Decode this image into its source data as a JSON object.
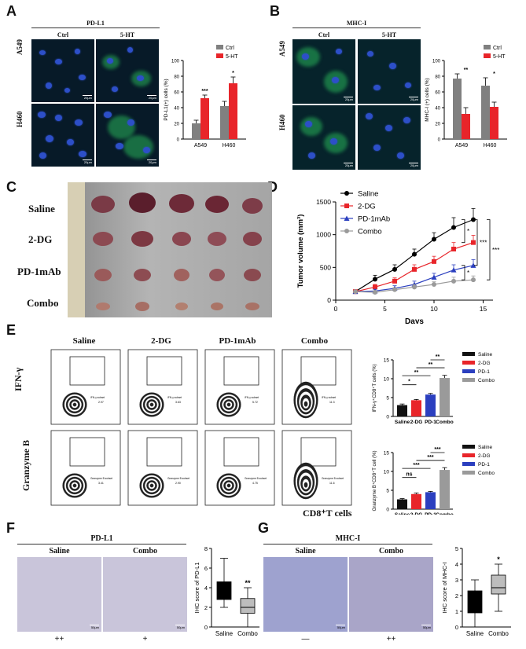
{
  "panels": {
    "A": "A",
    "B": "B",
    "C": "C",
    "D": "D",
    "E": "E",
    "F": "F",
    "G": "G"
  },
  "A": {
    "title": "PD-L1",
    "cols": [
      "Ctrl",
      "5-HT"
    ],
    "rows": [
      "A549",
      "H460"
    ],
    "scale": "20μm",
    "legend": [
      "Ctrl",
      "5-HT"
    ],
    "ylabel": "PD-L1(+) cells (%)",
    "yticks": [
      "0",
      "20",
      "40",
      "60",
      "80",
      "100"
    ],
    "sig": [
      "***",
      "*"
    ],
    "colors": {
      "ctrl": "#808080",
      "treat": "#e8252a"
    }
  },
  "B": {
    "title": "MHC-I",
    "cols": [
      "Ctrl",
      "5-HT"
    ],
    "rows": [
      "A549",
      "H460"
    ],
    "scale": "20μm",
    "legend": [
      "Ctrl",
      "5-HT"
    ],
    "ylabel": "MHC-I (+) cells (%)",
    "yticks": [
      "0",
      "20",
      "40",
      "60",
      "80",
      "100"
    ],
    "sig": [
      "**",
      "*"
    ]
  },
  "C": {
    "rows": [
      "Saline",
      "2-DG",
      "PD-1mAb",
      "Combo"
    ]
  },
  "D": {
    "xlabel": "Days",
    "ylabel": "Tumor volume (mm³)",
    "legend": [
      "Saline",
      "2-DG",
      "PD-1mAb",
      "Combo"
    ],
    "sig": [
      "*",
      "***",
      "***",
      "*"
    ]
  },
  "E": {
    "cols": [
      "Saline",
      "2-DG",
      "PD-1mAb",
      "Combo"
    ],
    "row1": "IFN-γ",
    "row2": "Granzyme B",
    "xlabel": "CD8⁺T cells",
    "gate1": "IFN-γ subset",
    "gate2": "Granzyme B subset",
    "vals1": [
      "2.97",
      "3.63",
      "5.72",
      "11.3"
    ],
    "vals2": [
      "3.41",
      "2.90",
      "4.75",
      "11.6"
    ],
    "legend": [
      "Saline",
      "2-DG",
      "PD-1",
      "Combo"
    ],
    "ylabel1": "IFN-γ⁺CD8⁺T cells (%)",
    "ylabel2": "Granzyme B⁺CD8⁺T cell (%)",
    "sig1": [
      "*",
      "**",
      "**",
      "**"
    ],
    "sig2": [
      "ns",
      "***",
      "***",
      "***"
    ],
    "xcats": [
      "Saline",
      "2-DG",
      "PD-1",
      "Combo"
    ]
  },
  "F": {
    "title": "PD-L1",
    "cols": [
      "Saline",
      "Combo"
    ],
    "scores": [
      "++",
      "+"
    ],
    "scale": "50μm",
    "ylabel": "IHC score of PD-L1",
    "sig": "**",
    "xcats": [
      "Saline",
      "Combo"
    ]
  },
  "G": {
    "title": "MHC-I",
    "cols": [
      "Saline",
      "Combo"
    ],
    "scores": [
      "—",
      "++"
    ],
    "scale": "50μm",
    "ylabel": "IHC score of MHC-I",
    "sig": "*",
    "xcats": [
      "Saline",
      "Combo"
    ]
  },
  "chart_data": [
    {
      "id": "A",
      "type": "bar",
      "categories": [
        "A549",
        "H460"
      ],
      "series": [
        {
          "name": "Ctrl",
          "values": [
            20,
            42
          ],
          "errors": [
            4,
            6
          ]
        },
        {
          "name": "5-HT",
          "values": [
            52,
            71
          ],
          "errors": [
            4,
            8
          ]
        }
      ],
      "ylabel": "PD-L1(+) cells (%)",
      "ylim": [
        0,
        100
      ]
    },
    {
      "id": "B",
      "type": "bar",
      "categories": [
        "A549",
        "H460"
      ],
      "series": [
        {
          "name": "Ctrl",
          "values": [
            77,
            68
          ],
          "errors": [
            6,
            10
          ]
        },
        {
          "name": "5-HT",
          "values": [
            32,
            41
          ],
          "errors": [
            8,
            6
          ]
        }
      ],
      "ylabel": "MHC-I (+) cells (%)",
      "ylim": [
        0,
        100
      ]
    },
    {
      "id": "D",
      "type": "line",
      "x": [
        2,
        4,
        6,
        8,
        10,
        12,
        14
      ],
      "series": [
        {
          "name": "Saline",
          "values": [
            130,
            320,
            470,
            700,
            930,
            1110,
            1230
          ],
          "errors": [
            20,
            60,
            70,
            80,
            100,
            150,
            170
          ]
        },
        {
          "name": "2-DG",
          "values": [
            130,
            200,
            290,
            470,
            590,
            780,
            880
          ],
          "errors": [
            20,
            40,
            50,
            70,
            80,
            100,
            110
          ]
        },
        {
          "name": "PD-1mAb",
          "values": [
            130,
            140,
            180,
            240,
            350,
            460,
            530
          ],
          "errors": [
            15,
            25,
            40,
            50,
            60,
            80,
            90
          ]
        },
        {
          "name": "Combo",
          "values": [
            130,
            120,
            160,
            200,
            240,
            290,
            310
          ],
          "errors": [
            15,
            20,
            30,
            40,
            40,
            60,
            60
          ]
        }
      ],
      "xlabel": "Days",
      "ylabel": "Tumor volume (mm³)",
      "xlim": [
        0,
        16
      ],
      "ylim": [
        0,
        1500
      ],
      "xticks": [
        0,
        5,
        10,
        15
      ],
      "yticks": [
        0,
        500,
        1000,
        1500
      ]
    },
    {
      "id": "E1",
      "type": "bar",
      "categories": [
        "Saline",
        "2-DG",
        "PD-1",
        "Combo"
      ],
      "values": [
        3.0,
        4.3,
        5.8,
        10.2
      ],
      "errors": [
        0.3,
        0.2,
        0.3,
        0.7
      ],
      "colors": [
        "#111111",
        "#e8252a",
        "#2b3fbf",
        "#9a9a9a"
      ],
      "ylabel": "IFN-γ⁺CD8⁺T cells (%)",
      "ylim": [
        0,
        15
      ],
      "yticks": [
        0,
        5,
        10,
        15
      ]
    },
    {
      "id": "E2",
      "type": "bar",
      "categories": [
        "Saline",
        "2-DG",
        "PD-1",
        "Combo"
      ],
      "values": [
        2.6,
        4.0,
        4.5,
        10.4
      ],
      "errors": [
        0.2,
        0.3,
        0.2,
        0.6
      ],
      "colors": [
        "#111111",
        "#e8252a",
        "#2b3fbf",
        "#9a9a9a"
      ],
      "ylabel": "Granzyme B⁺CD8⁺T cell (%)",
      "ylim": [
        0,
        15
      ],
      "yticks": [
        0,
        5,
        10,
        15
      ]
    },
    {
      "id": "F",
      "type": "box",
      "categories": [
        "Saline",
        "Combo"
      ],
      "boxes": [
        {
          "min": 2,
          "q1": 2.8,
          "median": 4,
          "q3": 4.6,
          "max": 7
        },
        {
          "min": 0,
          "q1": 1.4,
          "median": 2,
          "q3": 2.9,
          "max": 4
        }
      ],
      "ylabel": "IHC score of PD-L1",
      "ylim": [
        0,
        8
      ],
      "yticks": [
        0,
        2,
        4,
        6,
        8
      ]
    },
    {
      "id": "G",
      "type": "box",
      "categories": [
        "Saline",
        "Combo"
      ],
      "boxes": [
        {
          "min": 0,
          "q1": 0.9,
          "median": 1.5,
          "q3": 2.3,
          "max": 3
        },
        {
          "min": 1,
          "q1": 2.1,
          "median": 2.5,
          "q3": 3.3,
          "max": 4
        }
      ],
      "ylabel": "IHC score of MHC-I",
      "ylim": [
        0,
        5
      ],
      "yticks": [
        0,
        1,
        2,
        3,
        4,
        5
      ]
    }
  ]
}
